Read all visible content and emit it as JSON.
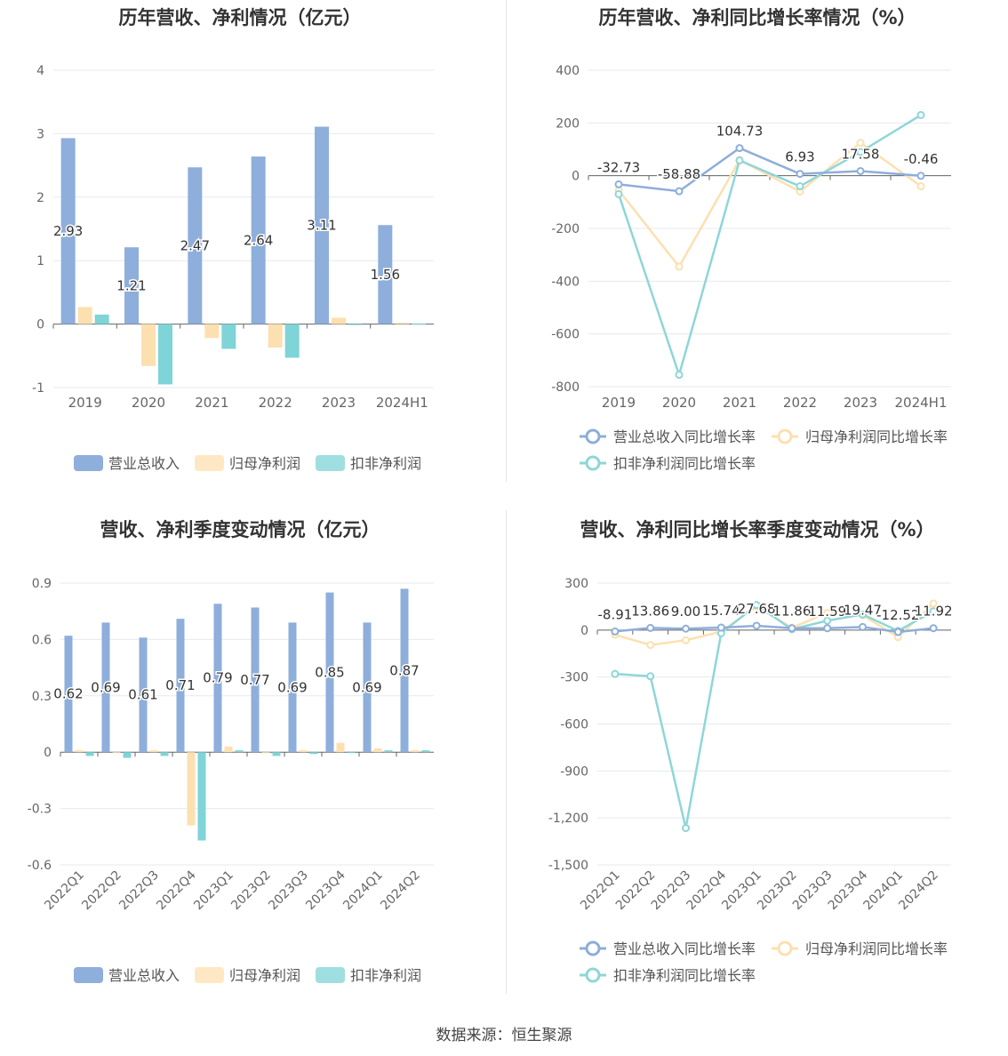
{
  "colors": {
    "revenue": "#8eaedb",
    "net_profit": "#fde0b0",
    "deducted": "#7fd4d7",
    "rev_line": "#8eaedb",
    "np_line": "#fde0b0",
    "dd_line": "#8fd6d8"
  },
  "footer": {
    "source": "数据来源：恒生聚源"
  },
  "chart_data": [
    {
      "id": "annual_bar",
      "type": "bar",
      "title": "历年营收、净利情况（亿元）",
      "categories": [
        "2019",
        "2020",
        "2021",
        "2022",
        "2023",
        "2024H1"
      ],
      "ylim": [
        -1,
        4
      ],
      "yticks": [
        "-1",
        "0",
        "1",
        "2",
        "3",
        "4"
      ],
      "grid": true,
      "legend": "bottom",
      "series": [
        {
          "name": "营业总收入",
          "values": [
            2.93,
            1.21,
            2.47,
            2.64,
            3.11,
            1.56
          ],
          "labels": [
            "2.93",
            "1.21",
            "2.47",
            "2.64",
            "3.11",
            "1.56"
          ]
        },
        {
          "name": "归母净利润",
          "values": [
            0.27,
            -0.66,
            -0.22,
            -0.37,
            0.1,
            0.02
          ]
        },
        {
          "name": "扣非净利润",
          "values": [
            0.15,
            -0.95,
            -0.39,
            -0.53,
            0.0,
            0.01
          ]
        }
      ]
    },
    {
      "id": "annual_growth",
      "type": "line",
      "title": "历年营收、净利同比增长率情况（%）",
      "categories": [
        "2019",
        "2020",
        "2021",
        "2022",
        "2023",
        "2024H1"
      ],
      "ylim": [
        -800,
        400
      ],
      "yticks": [
        "-800",
        "-600",
        "-400",
        "-200",
        "0",
        "200",
        "400"
      ],
      "grid": true,
      "legend": "bottom",
      "series": [
        {
          "name": "营业总收入同比增长率",
          "values": [
            -32.73,
            -58.88,
            104.73,
            6.93,
            17.58,
            -0.46
          ],
          "labels": [
            "-32.73",
            "-58.88",
            "104.73",
            "6.93",
            "17.58",
            "-0.46"
          ]
        },
        {
          "name": "归母净利润同比增长率",
          "values": [
            -55,
            -345,
            60,
            -60,
            125,
            -40
          ]
        },
        {
          "name": "扣非净利润同比增长率",
          "values": [
            -70,
            -755,
            58,
            -40,
            90,
            230
          ]
        }
      ]
    },
    {
      "id": "quarterly_bar",
      "type": "bar",
      "title": "营收、净利季度变动情况（亿元）",
      "categories": [
        "2022Q1",
        "2022Q2",
        "2022Q3",
        "2022Q4",
        "2023Q1",
        "2023Q2",
        "2023Q3",
        "2023Q4",
        "2024Q1",
        "2024Q2"
      ],
      "ylim": [
        -0.6,
        0.9
      ],
      "yticks": [
        "-0.6",
        "-0.3",
        "0",
        "0.3",
        "0.6",
        "0.9"
      ],
      "grid": true,
      "legend": "bottom",
      "series": [
        {
          "name": "营业总收入",
          "values": [
            0.62,
            0.69,
            0.61,
            0.71,
            0.79,
            0.77,
            0.69,
            0.85,
            0.69,
            0.87
          ],
          "labels": [
            "0.62",
            "0.69",
            "0.61",
            "0.71",
            "0.79",
            "0.77",
            "0.69",
            "0.85",
            "0.69",
            "0.87"
          ]
        },
        {
          "name": "归母净利润",
          "values": [
            0.01,
            0.0,
            0.01,
            -0.39,
            0.03,
            0.0,
            0.01,
            0.05,
            0.02,
            0.01
          ]
        },
        {
          "name": "扣非净利润",
          "values": [
            -0.02,
            -0.03,
            -0.02,
            -0.47,
            0.01,
            -0.02,
            -0.01,
            0.0,
            0.01,
            0.01
          ]
        }
      ]
    },
    {
      "id": "quarterly_growth",
      "type": "line",
      "title": "营收、净利同比增长率季度变动情况（%）",
      "categories": [
        "2022Q1",
        "2022Q2",
        "2022Q3",
        "2022Q4",
        "2023Q1",
        "2023Q2",
        "2023Q3",
        "2023Q4",
        "2024Q1",
        "2024Q2"
      ],
      "ylim": [
        -1500,
        300
      ],
      "yticks": [
        "-1,500",
        "-1,200",
        "-900",
        "-600",
        "-300",
        "0",
        "300"
      ],
      "grid": true,
      "legend": "bottom",
      "series": [
        {
          "name": "营业总收入同比增长率",
          "values": [
            -8.91,
            13.86,
            9.0,
            15.74,
            27.68,
            11.86,
            11.59,
            19.47,
            -12.52,
            11.92
          ],
          "labels": [
            "-8.91",
            "13.86",
            "9.00",
            "15.74",
            "27.68",
            "11.86",
            "11.59",
            "19.47",
            "-12.52",
            "11.92"
          ]
        },
        {
          "name": "归母净利润同比增长率",
          "values": [
            -30,
            -95,
            -65,
            -10,
            150,
            15,
            110,
            95,
            -45,
            170
          ]
        },
        {
          "name": "扣非净利润同比增长率",
          "values": [
            -280,
            -295,
            -1265,
            -20,
            160,
            5,
            60,
            100,
            -5,
            120
          ]
        }
      ]
    }
  ]
}
